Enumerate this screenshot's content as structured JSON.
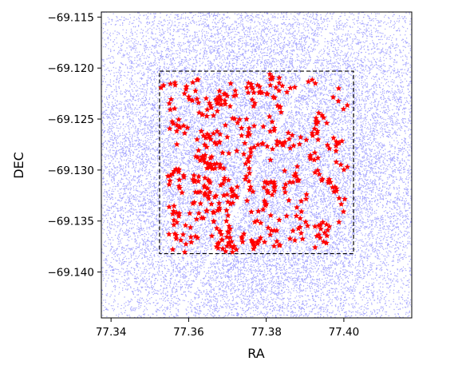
{
  "chart_data": {
    "type": "scatter",
    "title": "",
    "xlabel": "RA",
    "ylabel": "DEC",
    "xlim": [
      77.3375,
      77.4175
    ],
    "ylim": [
      -69.1445,
      -69.1145
    ],
    "xticks": [
      77.34,
      77.36,
      77.38,
      77.4
    ],
    "xtick_labels": [
      "77.34",
      "77.36",
      "77.38",
      "77.40"
    ],
    "yticks": [
      -69.115,
      -69.12,
      -69.125,
      -69.13,
      -69.135,
      -69.14
    ],
    "ytick_labels": [
      "−69.115",
      "−69.120",
      "−69.125",
      "−69.130",
      "−69.135",
      "−69.140"
    ],
    "grid": false,
    "legend": "none",
    "colors": {
      "background_points": "#0000ff",
      "selected_points": "#ff0000",
      "box": "#000000"
    },
    "box_region": {
      "ra": [
        77.3525,
        77.4025
      ],
      "dec": [
        -69.1382,
        -69.1203
      ],
      "style": "dashed"
    },
    "series": [
      {
        "marker": "dot",
        "color": "#0000ff",
        "alpha": 0.35,
        "approx_count": 40000,
        "extent_ra": [
          77.3375,
          77.4175
        ],
        "extent_dec": [
          -69.1445,
          -69.1145
        ],
        "density": "denser near the centre of the field",
        "gap_stripe": {
          "from": [
            77.3575,
            -69.1445
          ],
          "to": [
            77.3985,
            -69.1145
          ],
          "width_ra": 0.0012
        }
      },
      {
        "marker": "star",
        "color": "#ff0000",
        "approx_count": 500,
        "extent_ra": [
          77.3525,
          77.4025
        ],
        "extent_dec": [
          -69.1382,
          -69.1203
        ]
      }
    ]
  }
}
